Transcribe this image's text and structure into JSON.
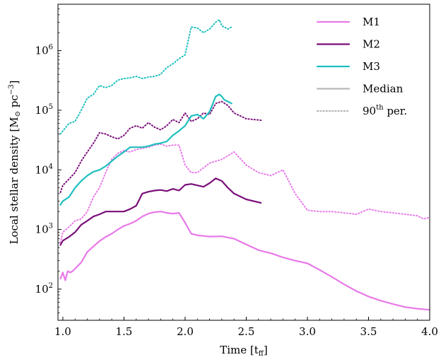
{
  "chart_data": {
    "type": "line",
    "title": "",
    "xlabel": "Time [t",
    "xlabel_sub": "ff",
    "xlabel_end": "]",
    "ylabel": "Local stellar density [M",
    "ylabel_sun": "⊙",
    "ylabel_unit": " pc",
    "ylabel_exp": "−3",
    "ylabel_end": "]",
    "xlim": [
      0.96,
      4.0
    ],
    "ylim": [
      30,
      6000000
    ],
    "yscale": "log",
    "x_ticks": [
      {
        "value": 1.0,
        "label": "1.0"
      },
      {
        "value": 1.5,
        "label": "1.5"
      },
      {
        "value": 2.0,
        "label": "2.0"
      },
      {
        "value": 2.5,
        "label": "2.5"
      },
      {
        "value": 3.0,
        "label": "3.0"
      },
      {
        "value": 3.5,
        "label": "3.5"
      },
      {
        "value": 4.0,
        "label": "4.0"
      }
    ],
    "y_ticks": [
      {
        "value": 100,
        "base": "10",
        "exp": "2"
      },
      {
        "value": 1000,
        "base": "10",
        "exp": "3"
      },
      {
        "value": 10000,
        "base": "10",
        "exp": "4"
      },
      {
        "value": 100000,
        "base": "10",
        "exp": "5"
      },
      {
        "value": 1000000,
        "base": "10",
        "exp": "6"
      }
    ],
    "legend_position": "top-right",
    "legend": [
      {
        "label": "M1",
        "color": "#e879e8",
        "style": "solid"
      },
      {
        "label": "M2",
        "color": "#7a0f7a",
        "style": "solid"
      },
      {
        "label": "M3",
        "color": "#1fbfbf",
        "style": "solid"
      },
      {
        "label": "Median",
        "color": "#b8b8b8",
        "style": "solid"
      },
      {
        "label": "90",
        "sup": "th",
        "label_end": " per.",
        "color": "#b8b8b8",
        "style": "dotted"
      }
    ],
    "series": [
      {
        "name": "M1",
        "stat": "median",
        "color": "#e879e8",
        "style": "solid",
        "x": [
          0.98,
          1.0,
          1.02,
          1.04,
          1.06,
          1.08,
          1.1,
          1.15,
          1.2,
          1.25,
          1.3,
          1.35,
          1.4,
          1.45,
          1.5,
          1.55,
          1.6,
          1.65,
          1.7,
          1.75,
          1.8,
          1.85,
          1.9,
          1.95,
          2.0,
          2.05,
          2.1,
          2.2,
          2.3,
          2.4,
          2.5,
          2.6,
          2.7,
          2.8,
          2.9,
          3.0,
          3.1,
          3.2,
          3.3,
          3.4,
          3.5,
          3.6,
          3.7,
          3.8,
          3.9,
          4.0
        ],
        "y": [
          150,
          190,
          140,
          200,
          190,
          200,
          220,
          280,
          420,
          520,
          640,
          750,
          850,
          1000,
          1150,
          1250,
          1400,
          1650,
          1850,
          1950,
          2000,
          1900,
          1850,
          1900,
          1300,
          850,
          800,
          760,
          770,
          700,
          560,
          450,
          400,
          340,
          300,
          270,
          210,
          160,
          120,
          93,
          75,
          64,
          56,
          50,
          47,
          45
        ]
      },
      {
        "name": "M1",
        "stat": "90th per.",
        "color": "#e879e8",
        "style": "dotted",
        "x": [
          0.98,
          1.0,
          1.05,
          1.1,
          1.15,
          1.2,
          1.25,
          1.3,
          1.35,
          1.4,
          1.45,
          1.5,
          1.55,
          1.6,
          1.65,
          1.7,
          1.75,
          1.8,
          1.85,
          1.9,
          1.95,
          2.0,
          2.05,
          2.1,
          2.2,
          2.3,
          2.4,
          2.5,
          2.6,
          2.7,
          2.8,
          2.9,
          3.0,
          3.1,
          3.2,
          3.3,
          3.4,
          3.5,
          3.6,
          3.7,
          3.8,
          3.9,
          3.95,
          4.0
        ],
        "y": [
          600,
          900,
          1100,
          1400,
          1500,
          2000,
          3500,
          5000,
          9000,
          15000,
          19000,
          21000,
          20000,
          22000,
          23000,
          24000,
          26000,
          27000,
          25000,
          26000,
          26000,
          12000,
          9000,
          9000,
          13000,
          15000,
          20000,
          12000,
          9000,
          8000,
          10000,
          4000,
          2100,
          2000,
          2000,
          1900,
          1800,
          2200,
          2000,
          1900,
          1800,
          1700,
          1500,
          1600
        ]
      },
      {
        "name": "M2",
        "stat": "median",
        "color": "#7a0f7a",
        "style": "solid",
        "x": [
          0.98,
          1.0,
          1.05,
          1.1,
          1.15,
          1.2,
          1.25,
          1.3,
          1.35,
          1.4,
          1.45,
          1.5,
          1.55,
          1.6,
          1.65,
          1.7,
          1.75,
          1.8,
          1.85,
          1.9,
          1.95,
          2.0,
          2.05,
          2.1,
          2.15,
          2.2,
          2.25,
          2.3,
          2.35,
          2.4,
          2.5,
          2.62
        ],
        "y": [
          550,
          650,
          750,
          900,
          1200,
          1400,
          1650,
          1800,
          2000,
          2000,
          2000,
          2000,
          2200,
          2500,
          4000,
          4300,
          4500,
          4600,
          4400,
          4800,
          4500,
          5600,
          5800,
          5500,
          5200,
          6000,
          7200,
          6500,
          5000,
          4000,
          3200,
          2800
        ]
      },
      {
        "name": "M2",
        "stat": "90th per.",
        "color": "#7a0f7a",
        "style": "dotted",
        "x": [
          0.98,
          1.0,
          1.05,
          1.1,
          1.15,
          1.2,
          1.25,
          1.3,
          1.35,
          1.4,
          1.45,
          1.5,
          1.55,
          1.6,
          1.65,
          1.7,
          1.75,
          1.8,
          1.85,
          1.9,
          1.95,
          2.0,
          2.05,
          2.1,
          2.15,
          2.2,
          2.25,
          2.3,
          2.35,
          2.4,
          2.5,
          2.62
        ],
        "y": [
          4200,
          5500,
          7000,
          9000,
          14000,
          20000,
          28000,
          42000,
          40000,
          36000,
          33000,
          38000,
          50000,
          55000,
          50000,
          62000,
          52000,
          47000,
          55000,
          70000,
          62000,
          90000,
          65000,
          72000,
          90000,
          85000,
          130000,
          140000,
          120000,
          90000,
          72000,
          68000
        ]
      },
      {
        "name": "M3",
        "stat": "median",
        "color": "#1fbfbf",
        "style": "solid",
        "x": [
          0.98,
          1.0,
          1.05,
          1.1,
          1.15,
          1.2,
          1.25,
          1.3,
          1.35,
          1.4,
          1.45,
          1.5,
          1.55,
          1.6,
          1.65,
          1.7,
          1.75,
          1.8,
          1.85,
          1.9,
          1.95,
          2.0,
          2.05,
          2.1,
          2.15,
          2.2,
          2.25,
          2.28,
          2.3,
          2.32,
          2.35,
          2.38
        ],
        "y": [
          2600,
          3000,
          3500,
          5000,
          6500,
          8000,
          9300,
          10000,
          11500,
          14000,
          17000,
          20000,
          24000,
          24000,
          24000,
          25000,
          27000,
          28000,
          30000,
          38000,
          45000,
          55000,
          80000,
          85000,
          72000,
          95000,
          170000,
          185000,
          170000,
          150000,
          140000,
          130000
        ]
      },
      {
        "name": "M3",
        "stat": "90th per.",
        "color": "#1fbfbf",
        "style": "dotted",
        "x": [
          0.98,
          1.0,
          1.05,
          1.1,
          1.15,
          1.2,
          1.25,
          1.3,
          1.35,
          1.4,
          1.45,
          1.5,
          1.55,
          1.6,
          1.65,
          1.7,
          1.75,
          1.8,
          1.85,
          1.9,
          1.95,
          2.0,
          2.05,
          2.1,
          2.15,
          2.2,
          2.25,
          2.28,
          2.3,
          2.35,
          2.38
        ],
        "y": [
          40000,
          45000,
          60000,
          65000,
          100000,
          160000,
          185000,
          260000,
          240000,
          260000,
          320000,
          340000,
          350000,
          370000,
          340000,
          360000,
          370000,
          400000,
          520000,
          600000,
          730000,
          850000,
          2500000,
          2400000,
          2000000,
          2300000,
          3000000,
          3300000,
          2600000,
          2300000,
          2500000
        ]
      }
    ]
  }
}
